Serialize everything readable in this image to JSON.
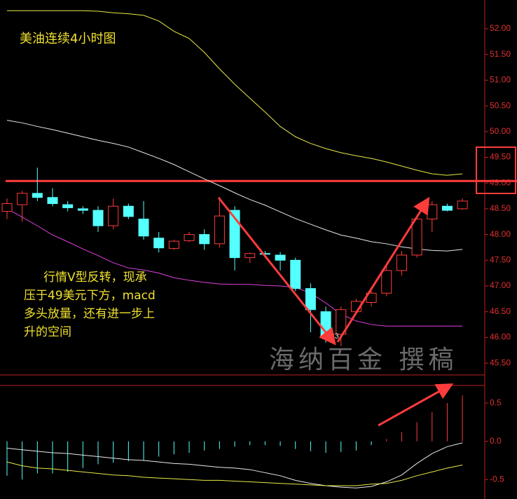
{
  "chart_data": [
    {
      "type": "candlestick",
      "title": "美油连续4小时图",
      "annotation_lines": [
        "行情V型反转，现承",
        "压于49美元下方，macd",
        "多头放量，还有进一步上",
        "升的空间"
      ],
      "watermark": "海纳百金 撰稿",
      "open": [
        48.45,
        48.58,
        48.8,
        48.72,
        48.58,
        48.5,
        48.47,
        48.17,
        48.55,
        48.3,
        47.93,
        47.73,
        47.88,
        48.0,
        47.82,
        48.47,
        47.55,
        47.63,
        47.6,
        47.5,
        46.95,
        46.5,
        46.06,
        46.5,
        46.68,
        46.86,
        47.3,
        47.6,
        48.3,
        48.55,
        48.5
      ],
      "high": [
        48.7,
        48.85,
        49.3,
        48.9,
        48.65,
        48.55,
        48.55,
        48.7,
        48.6,
        48.65,
        48.05,
        47.9,
        48.05,
        48.1,
        48.73,
        48.55,
        47.65,
        47.68,
        47.66,
        47.55,
        47.05,
        46.6,
        46.6,
        46.75,
        46.9,
        47.4,
        47.68,
        48.35,
        48.65,
        48.6,
        48.7
      ],
      "low": [
        48.3,
        48.25,
        48.65,
        48.55,
        48.45,
        48.4,
        48.05,
        48.1,
        48.3,
        47.9,
        47.65,
        47.7,
        47.85,
        47.7,
        47.75,
        47.3,
        47.45,
        47.55,
        47.3,
        46.9,
        46.1,
        45.9,
        45.83,
        46.45,
        46.6,
        46.8,
        47.2,
        47.55,
        48.05,
        48.45,
        48.48
      ],
      "close": [
        48.6,
        48.8,
        48.72,
        48.6,
        48.52,
        48.47,
        48.17,
        48.55,
        48.35,
        47.97,
        47.74,
        47.87,
        48.0,
        47.82,
        48.36,
        47.55,
        47.63,
        47.62,
        47.5,
        46.95,
        46.54,
        46.04,
        46.54,
        46.7,
        46.86,
        47.3,
        47.6,
        48.3,
        48.58,
        48.47,
        48.65
      ],
      "up_color": "#ff3c3c",
      "down_color": "#54ffff",
      "low_label_index": 22,
      "series": [
        {
          "color": "#e8e84a",
          "values": [
            52.35,
            52.35,
            52.35,
            52.35,
            52.35,
            52.35,
            52.34,
            52.31,
            52.29,
            52.26,
            52.15,
            51.95,
            51.81,
            51.54,
            51.22,
            50.92,
            50.65,
            50.38,
            50.1,
            49.9,
            49.77,
            49.67,
            49.59,
            49.53,
            49.48,
            49.41,
            49.33,
            49.25,
            49.18,
            49.15,
            49.18
          ]
        },
        {
          "color": "#e8e8e8",
          "values": [
            50.22,
            50.17,
            50.1,
            50.04,
            49.97,
            49.9,
            49.83,
            49.77,
            49.7,
            49.59,
            49.48,
            49.36,
            49.22,
            49.08,
            48.95,
            48.81,
            48.68,
            48.57,
            48.44,
            48.31,
            48.2,
            48.09,
            47.99,
            47.93,
            47.86,
            47.82,
            47.76,
            47.72,
            47.69,
            47.68,
            47.71
          ]
        },
        {
          "color": "#e040e0",
          "values": [
            48.5,
            48.34,
            48.17,
            47.99,
            47.86,
            47.72,
            47.59,
            47.45,
            47.35,
            47.31,
            47.25,
            47.16,
            47.11,
            47.07,
            47.04,
            47.03,
            47.03,
            47.01,
            47.0,
            46.97,
            46.86,
            46.67,
            46.45,
            46.32,
            46.25,
            46.22,
            46.22,
            46.22,
            46.22,
            46.22,
            46.22
          ]
        }
      ],
      "horizontal_line": 49.04,
      "horizontal_line_color": "#ff3c3c",
      "ylim": [
        45.27,
        52.49
      ],
      "yticks": [
        {
          "value": 45.5,
          "label": "45.50"
        },
        {
          "value": 46,
          "label": "46.00"
        },
        {
          "value": 46.5,
          "label": "46.50"
        },
        {
          "value": 47,
          "label": "47.00"
        },
        {
          "value": 47.5,
          "label": "47.50"
        },
        {
          "value": 48,
          "label": "48.00"
        },
        {
          "value": 48.5,
          "label": "48.50"
        },
        {
          "value": 49,
          "label": "49.00"
        },
        {
          "value": 49.5,
          "label": "49.50"
        },
        {
          "value": 50,
          "label": "50.00"
        },
        {
          "value": 50.5,
          "label": "50.50"
        },
        {
          "value": 51,
          "label": "51.00"
        },
        {
          "value": 51.5,
          "label": "51.50"
        },
        {
          "value": 52,
          "label": "52.00"
        }
      ]
    },
    {
      "type": "macd",
      "histogram": [
        -0.45,
        -0.5,
        -0.42,
        -0.42,
        -0.4,
        -0.35,
        -0.3,
        -0.28,
        -0.26,
        -0.25,
        -0.2,
        -0.17,
        -0.15,
        -0.12,
        -0.1,
        -0.07,
        -0.05,
        -0.05,
        -0.06,
        -0.1,
        -0.13,
        -0.15,
        -0.14,
        -0.12,
        -0.05,
        0.03,
        0.12,
        0.25,
        0.38,
        0.5,
        0.6
      ],
      "up_color": "#ff3c3c",
      "down_color": "#54ffff",
      "series": [
        {
          "color": "#e8e8e8",
          "values": [
            -0.09,
            -0.11,
            -0.13,
            -0.15,
            -0.16,
            -0.18,
            -0.2,
            -0.22,
            -0.24,
            -0.25,
            -0.27,
            -0.29,
            -0.3,
            -0.32,
            -0.34,
            -0.35,
            -0.37,
            -0.41,
            -0.45,
            -0.51,
            -0.55,
            -0.58,
            -0.6,
            -0.61,
            -0.59,
            -0.53,
            -0.44,
            -0.29,
            -0.16,
            -0.07,
            -0.02
          ]
        },
        {
          "color": "#e8e84a",
          "values": [
            -0.27,
            -0.32,
            -0.35,
            -0.36,
            -0.38,
            -0.4,
            -0.42,
            -0.44,
            -0.45,
            -0.47,
            -0.48,
            -0.49,
            -0.5,
            -0.51,
            -0.51,
            -0.52,
            -0.53,
            -0.54,
            -0.55,
            -0.56,
            -0.57,
            -0.58,
            -0.58,
            -0.58,
            -0.56,
            -0.55,
            -0.51,
            -0.45,
            -0.4,
            -0.35,
            -0.31
          ]
        }
      ],
      "ylim": [
        -0.69,
        0.73
      ],
      "yticks": [
        {
          "value": 0.5,
          "label": "0.5"
        },
        {
          "value": 0,
          "label": "0.0"
        },
        {
          "value": -0.5,
          "label": "-0.5"
        }
      ]
    }
  ]
}
